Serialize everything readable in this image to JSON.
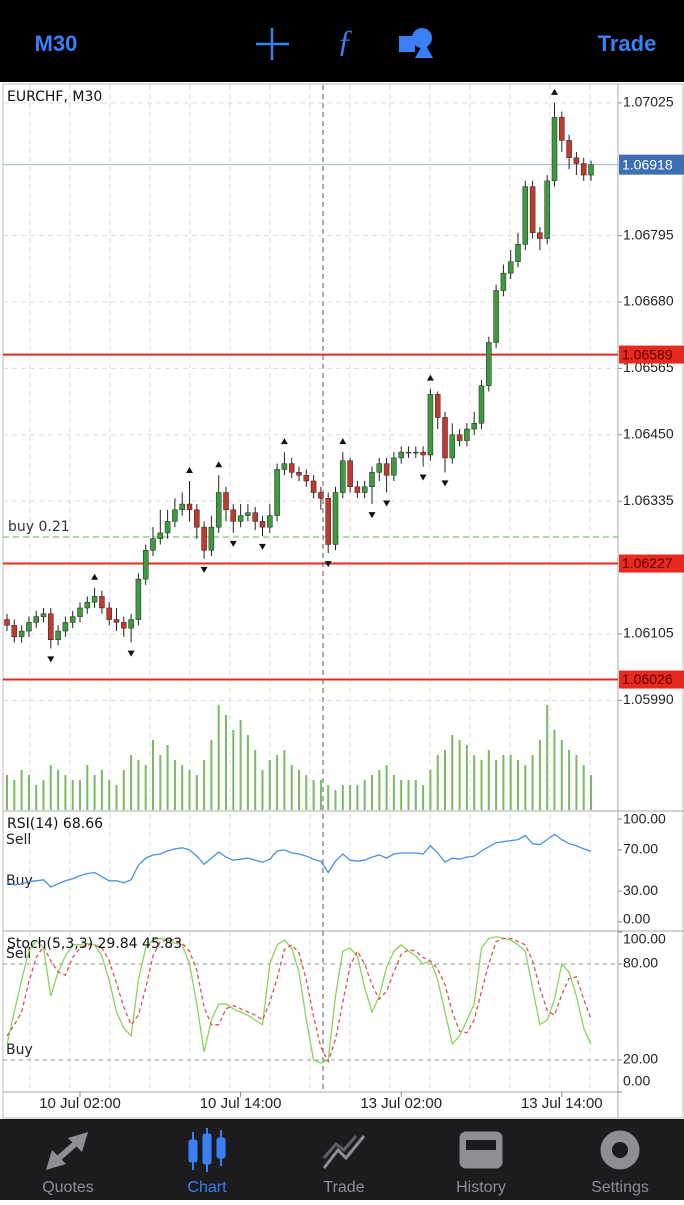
{
  "toolbar": {
    "timeframe": "M30",
    "trade": "Trade"
  },
  "tabs": [
    {
      "label": "Quotes"
    },
    {
      "label": "Chart"
    },
    {
      "label": "Trade"
    },
    {
      "label": "History"
    },
    {
      "label": "Settings"
    }
  ],
  "active_tab": 1,
  "chart_data": [
    {
      "type": "candlestick",
      "title": "EURCHF, M30",
      "categories": [
        null,
        null,
        null,
        null,
        null,
        null,
        null,
        null,
        null,
        null,
        "10 Jul 02:00",
        null,
        null,
        null,
        null,
        null,
        null,
        null,
        null,
        null,
        null,
        null,
        null,
        null,
        null,
        null,
        null,
        null,
        null,
        null,
        null,
        null,
        "10 Jul 14:00",
        null,
        null,
        null,
        null,
        null,
        null,
        null,
        null,
        null,
        null,
        null,
        null,
        null,
        null,
        null,
        null,
        null,
        null,
        null,
        null,
        null,
        "13 Jul 02:00",
        null,
        null,
        null,
        null,
        null,
        null,
        null,
        null,
        null,
        null,
        null,
        null,
        null,
        null,
        null,
        null,
        null,
        null,
        null,
        null,
        null,
        "13 Jul 14:00",
        null,
        null,
        null,
        null
      ],
      "open": [
        1.0613,
        1.0612,
        1.061,
        1.0611,
        1.06125,
        1.06135,
        1.0614,
        1.06095,
        1.0611,
        1.06125,
        1.06135,
        1.0615,
        1.0616,
        1.0617,
        1.0615,
        1.0613,
        1.06125,
        1.06115,
        1.0613,
        1.062,
        1.0625,
        1.0627,
        1.0628,
        1.063,
        1.0632,
        1.0633,
        1.0632,
        1.0629,
        1.0625,
        1.0629,
        1.0635,
        1.0632,
        1.063,
        1.0631,
        1.06315,
        1.063,
        1.0629,
        1.0631,
        1.0639,
        1.064,
        1.06385,
        1.0638,
        1.0637,
        1.0635,
        1.0634,
        1.0626,
        1.0635,
        1.06405,
        1.0636,
        1.0635,
        1.0636,
        1.06385,
        1.064,
        1.0638,
        1.0641,
        1.0642,
        1.0642,
        1.0642,
        1.06415,
        1.0652,
        1.0648,
        1.0641,
        1.0645,
        1.0644,
        1.0646,
        1.0647,
        1.06535,
        1.0661,
        1.067,
        1.0673,
        1.0675,
        1.0678,
        1.0688,
        1.068,
        1.0679,
        1.0689,
        1.07,
        1.0696,
        1.0693,
        1.0692,
        1.069
      ],
      "high": [
        1.0614,
        1.0613,
        1.0612,
        1.06135,
        1.06145,
        1.0615,
        1.0615,
        1.0612,
        1.06135,
        1.06145,
        1.0616,
        1.0617,
        1.06185,
        1.0618,
        1.0616,
        1.0615,
        1.06135,
        1.0614,
        1.0621,
        1.0626,
        1.0629,
        1.0632,
        1.0632,
        1.0634,
        1.0635,
        1.0637,
        1.0633,
        1.063,
        1.0631,
        1.0638,
        1.0636,
        1.0633,
        1.0633,
        1.0633,
        1.06325,
        1.0631,
        1.0633,
        1.064,
        1.0642,
        1.0641,
        1.06395,
        1.0639,
        1.0638,
        1.0636,
        1.0635,
        1.0636,
        1.0642,
        1.0641,
        1.0637,
        1.0637,
        1.06395,
        1.0641,
        1.0641,
        1.0642,
        1.0643,
        1.0643,
        1.0643,
        1.0643,
        1.0653,
        1.06525,
        1.0649,
        1.0647,
        1.0646,
        1.0647,
        1.0649,
        1.06545,
        1.0662,
        1.0671,
        1.06745,
        1.0677,
        1.068,
        1.0689,
        1.0689,
        1.0681,
        1.069,
        1.07025,
        1.0701,
        1.0697,
        1.0694,
        1.0693,
        1.06925
      ],
      "low": [
        1.0611,
        1.0609,
        1.0609,
        1.061,
        1.06115,
        1.06125,
        1.0608,
        1.06085,
        1.061,
        1.06115,
        1.06125,
        1.0614,
        1.0615,
        1.0614,
        1.0612,
        1.0611,
        1.061,
        1.0609,
        1.0612,
        1.0619,
        1.0624,
        1.0626,
        1.0627,
        1.0629,
        1.0631,
        1.063,
        1.0627,
        1.06235,
        1.0624,
        1.0628,
        1.063,
        1.0628,
        1.0629,
        1.063,
        1.06285,
        1.06275,
        1.0628,
        1.063,
        1.0638,
        1.06375,
        1.0637,
        1.0636,
        1.0634,
        1.0632,
        1.06245,
        1.0625,
        1.0634,
        1.0635,
        1.0634,
        1.0634,
        1.0633,
        1.0637,
        1.0635,
        1.0637,
        1.064,
        1.0641,
        1.0641,
        1.06395,
        1.06405,
        1.0646,
        1.06385,
        1.064,
        1.0643,
        1.0643,
        1.0645,
        1.0646,
        1.06525,
        1.066,
        1.0669,
        1.0672,
        1.0674,
        1.0677,
        1.0679,
        1.0677,
        1.0678,
        1.0688,
        1.0694,
        1.0691,
        1.069,
        1.0689,
        1.0689
      ],
      "close": [
        1.0612,
        1.061,
        1.0611,
        1.06125,
        1.06135,
        1.0614,
        1.06095,
        1.0611,
        1.06125,
        1.06135,
        1.0615,
        1.0616,
        1.0617,
        1.0615,
        1.0613,
        1.06125,
        1.06115,
        1.0613,
        1.062,
        1.0625,
        1.0627,
        1.0628,
        1.063,
        1.0632,
        1.0633,
        1.0632,
        1.0629,
        1.0625,
        1.0629,
        1.0635,
        1.0632,
        1.063,
        1.0631,
        1.06315,
        1.063,
        1.0629,
        1.0631,
        1.0639,
        1.064,
        1.06385,
        1.0638,
        1.0637,
        1.0635,
        1.0634,
        1.0626,
        1.0635,
        1.06405,
        1.0636,
        1.0635,
        1.0636,
        1.06385,
        1.064,
        1.0638,
        1.0641,
        1.0642,
        1.0642,
        1.0642,
        1.06415,
        1.0652,
        1.0648,
        1.0641,
        1.0645,
        1.0644,
        1.0646,
        1.0647,
        1.06535,
        1.0661,
        1.067,
        1.0673,
        1.0675,
        1.0678,
        1.0688,
        1.068,
        1.0679,
        1.0689,
        1.07,
        1.0696,
        1.0693,
        1.0692,
        1.069,
        1.06918
      ],
      "ylim": [
        1.058,
        1.07056
      ],
      "yticks": [
        1.07025,
        1.06795,
        {
          "value": 1.0668,
          "label": "1.06680"
        },
        1.06565,
        {
          "value": 1.0645,
          "label": "1.06450"
        },
        1.06335,
        1.06105,
        {
          "value": 1.0599,
          "label": "1.05990"
        }
      ],
      "grid": true,
      "up_color": "#3d9a3d",
      "down_color": "#c2392d",
      "levels": [
        1.06589,
        1.06227,
        1.06026
      ],
      "level_color": "#e8291f",
      "current_price": 1.06918,
      "current_color": "#3f6fb3",
      "buy_line": {
        "label": "buy 0.21",
        "value": 1.06273,
        "color": "#6aa86a"
      },
      "fractals_up": [
        12,
        25,
        29,
        38,
        46,
        58,
        75
      ],
      "fractals_down": [
        6,
        17,
        27,
        31,
        35,
        44,
        50,
        52,
        57,
        60
      ],
      "volume": {
        "color": "#7ab865",
        "ylim": [
          0,
          120
        ],
        "values": [
          35,
          30,
          40,
          35,
          25,
          30,
          45,
          40,
          35,
          30,
          30,
          45,
          35,
          40,
          30,
          25,
          40,
          55,
          50,
          45,
          70,
          55,
          65,
          50,
          45,
          40,
          35,
          50,
          70,
          105,
          95,
          80,
          90,
          75,
          60,
          40,
          50,
          55,
          60,
          45,
          40,
          35,
          30,
          30,
          25,
          20,
          25,
          25,
          25,
          30,
          35,
          40,
          45,
          35,
          30,
          30,
          30,
          25,
          40,
          55,
          60,
          75,
          70,
          65,
          55,
          50,
          60,
          50,
          55,
          55,
          50,
          45,
          55,
          70,
          105,
          80,
          70,
          60,
          55,
          45,
          35
        ]
      }
    },
    {
      "type": "line",
      "title": "RSI(14) 68.66",
      "ylim": [
        -7.8,
        106.8
      ],
      "yticks": [
        {
          "value": 100,
          "label": "100.00"
        },
        {
          "value": 70,
          "label": "70.00"
        },
        {
          "value": 30,
          "label": "30.00"
        },
        {
          "value": 0,
          "label": "0.00"
        }
      ],
      "levels": [
        70,
        30
      ],
      "level_lines": false,
      "sell_label": "Sell",
      "buy_label": "Buy",
      "series": [
        {
          "color": "#4a90e2",
          "dash": false,
          "values": [
            38,
            36,
            37,
            39,
            40,
            41,
            34,
            37,
            40,
            42,
            45,
            47,
            48,
            44,
            40,
            40,
            38,
            41,
            55,
            62,
            65,
            66,
            69,
            71,
            72,
            70,
            64,
            56,
            62,
            68,
            63,
            60,
            61,
            62,
            60,
            58,
            61,
            69,
            70,
            67,
            66,
            64,
            61,
            59,
            48,
            59,
            66,
            60,
            59,
            60,
            63,
            65,
            62,
            66,
            67,
            67,
            67,
            66,
            74,
            67,
            58,
            62,
            61,
            63,
            64,
            69,
            73,
            77,
            78,
            79,
            80,
            84,
            76,
            75,
            80,
            85,
            80,
            76,
            74,
            71,
            68.66
          ]
        }
      ]
    },
    {
      "type": "line",
      "title": "Stoch(5,3,3) 29.84 45.83",
      "ylim": [
        0,
        100
      ],
      "yticks": [
        {
          "value": 100,
          "label": "100.00"
        },
        {
          "value": 80,
          "label": "80.00"
        },
        {
          "value": 20,
          "label": "20.00"
        },
        {
          "value": 0,
          "label": "0.00"
        }
      ],
      "levels": [
        80,
        20
      ],
      "level_lines": true,
      "sell_label": "Sell",
      "buy_label": "Buy",
      "series": [
        {
          "color": "#86d65c",
          "dash": false,
          "values": [
            30,
            50,
            70,
            88,
            95,
            90,
            60,
            75,
            85,
            92,
            92,
            93,
            92,
            85,
            70,
            50,
            40,
            35,
            70,
            90,
            95,
            96,
            95,
            93,
            92,
            80,
            55,
            25,
            45,
            55,
            55,
            52,
            50,
            48,
            45,
            42,
            80,
            92,
            95,
            90,
            75,
            45,
            20,
            18,
            20,
            60,
            88,
            90,
            85,
            65,
            50,
            60,
            78,
            88,
            92,
            88,
            85,
            80,
            82,
            70,
            50,
            30,
            35,
            45,
            55,
            90,
            96,
            97,
            96,
            95,
            92,
            88,
            65,
            42,
            45,
            58,
            80,
            75,
            60,
            40,
            29.84
          ]
        },
        {
          "color": "#e05252",
          "dash": true,
          "values": [
            35,
            42,
            50,
            69,
            84,
            91,
            82,
            75,
            73,
            84,
            90,
            92,
            92,
            90,
            82,
            68,
            53,
            42,
            48,
            65,
            85,
            94,
            95,
            95,
            93,
            88,
            76,
            53,
            42,
            42,
            52,
            54,
            52,
            50,
            48,
            45,
            56,
            71,
            89,
            92,
            87,
            70,
            47,
            28,
            19,
            33,
            56,
            79,
            88,
            80,
            67,
            58,
            63,
            75,
            86,
            89,
            88,
            84,
            82,
            77,
            67,
            50,
            38,
            37,
            45,
            63,
            80,
            94,
            96,
            96,
            94,
            92,
            82,
            65,
            51,
            48,
            61,
            71,
            72,
            58,
            45.83
          ]
        }
      ]
    }
  ]
}
